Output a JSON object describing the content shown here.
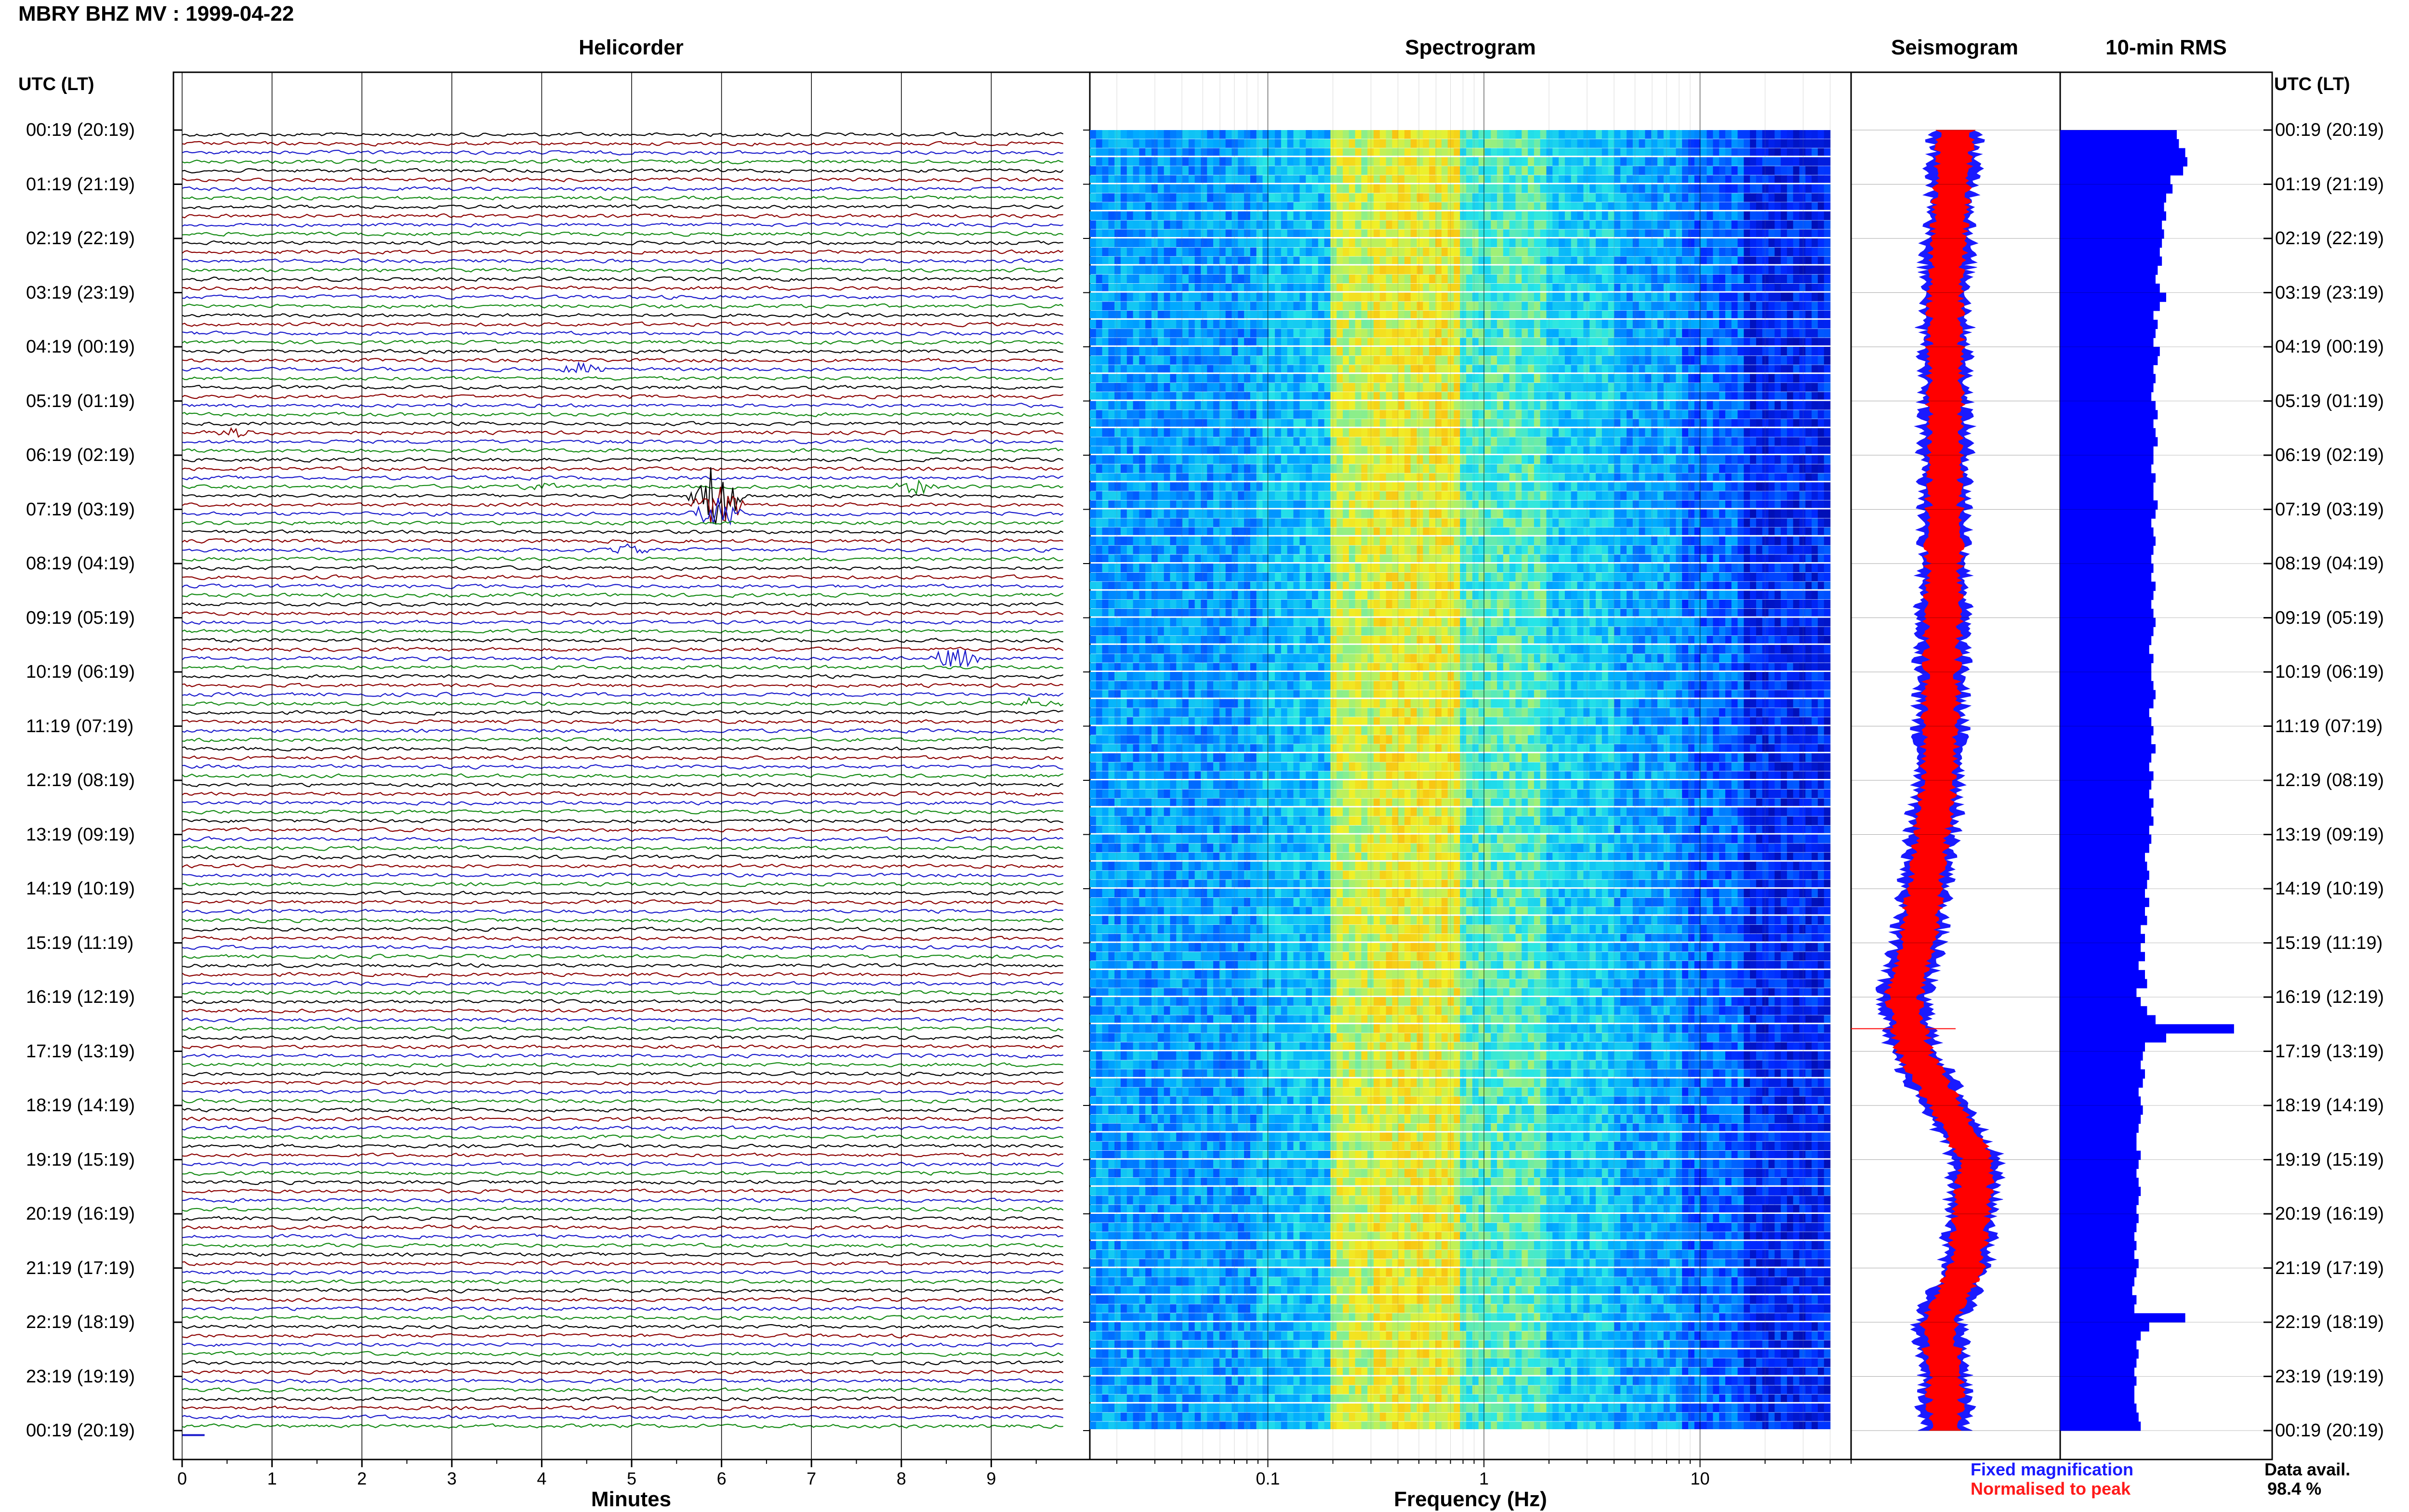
{
  "header": {
    "title": "MBRY BHZ MV : 1999-04-22"
  },
  "panels": {
    "helicorder": "Helicorder",
    "spectrogram": "Spectrogram",
    "seismogram": "Seismogram",
    "rms": "10-min RMS"
  },
  "axis_left_label": "UTC (LT)",
  "axis_right_label": "UTC (LT)",
  "time_labels": [
    "00:19 (20:19)",
    "01:19 (21:19)",
    "02:19 (22:19)",
    "03:19 (23:19)",
    "04:19 (00:19)",
    "05:19 (01:19)",
    "06:19 (02:19)",
    "07:19 (03:19)",
    "08:19 (04:19)",
    "09:19 (05:19)",
    "10:19 (06:19)",
    "11:19 (07:19)",
    "12:19 (08:19)",
    "13:19 (09:19)",
    "14:19 (10:19)",
    "15:19 (11:19)",
    "16:19 (12:19)",
    "17:19 (13:19)",
    "18:19 (14:19)",
    "19:19 (15:19)",
    "20:19 (16:19)",
    "21:19 (17:19)",
    "22:19 (18:19)",
    "23:19 (19:19)",
    "00:19 (20:19)"
  ],
  "x_captions": {
    "helicorder": "Minutes",
    "spectrogram": "Frequency (Hz)"
  },
  "legend": {
    "fixed": "Fixed magnification",
    "normalised": "Normalised to peak"
  },
  "availability": {
    "label": "Data avail.",
    "value": "98.4 %"
  },
  "colors": {
    "trace_black": "#000000",
    "trace_red": "#8b0000",
    "trace_blue": "#1a1acc",
    "trace_green": "#138a13",
    "rms_bar": "#0000ff",
    "seis_fixed": "#1a1aff",
    "seis_norm": "#ff0000"
  },
  "chart_data": [
    {
      "type": "line",
      "name": "helicorder",
      "xlabel": "Minutes",
      "xlim": [
        0,
        10
      ],
      "x_ticks": [
        0,
        1,
        2,
        3,
        4,
        5,
        6,
        7,
        8,
        9
      ],
      "rows_per_hour": 6,
      "hours": 24,
      "trace_color_cycle": [
        "trace_black",
        "trace_red",
        "trace_blue",
        "trace_green"
      ],
      "events": [
        {
          "row": 26,
          "minute": 4.45,
          "amplitude": 0.35
        },
        {
          "row": 33,
          "minute": 0.6,
          "amplitude": 0.25
        },
        {
          "row": 39,
          "minute": 4.0,
          "amplitude": 0.2
        },
        {
          "row": 39,
          "minute": 8.15,
          "amplitude": 0.4
        },
        {
          "row": 40,
          "minute": 5.95,
          "amplitude": 1.8
        },
        {
          "row": 41,
          "minute": 5.95,
          "amplitude": 1.2
        },
        {
          "row": 42,
          "minute": 5.95,
          "amplitude": 0.8
        },
        {
          "row": 46,
          "minute": 5.0,
          "amplitude": 0.3
        },
        {
          "row": 58,
          "minute": 8.6,
          "amplitude": 0.6
        },
        {
          "row": 63,
          "minute": 9.5,
          "amplitude": 0.25
        }
      ]
    },
    {
      "type": "heatmap",
      "name": "spectrogram",
      "xlabel": "Frequency (Hz)",
      "x_scale": "log",
      "xlim": [
        0.015,
        50
      ],
      "x_tick_labels": [
        "0.1",
        "1",
        "10"
      ],
      "x_tick_values": [
        0.1,
        1,
        10
      ],
      "rows": 144,
      "bands_hz": [
        {
          "from": 0.015,
          "to": 0.09,
          "level": 0.38
        },
        {
          "from": 0.09,
          "to": 0.2,
          "level": 0.45
        },
        {
          "from": 0.2,
          "to": 0.3,
          "level": 0.75
        },
        {
          "from": 0.3,
          "to": 0.8,
          "level": 0.8
        },
        {
          "from": 0.8,
          "to": 2.0,
          "level": 0.6
        },
        {
          "from": 2.0,
          "to": 4.0,
          "level": 0.48
        },
        {
          "from": 4.0,
          "to": 8.0,
          "level": 0.4
        },
        {
          "from": 8.0,
          "to": 16.0,
          "level": 0.3
        },
        {
          "from": 16.0,
          "to": 40.0,
          "level": 0.18
        }
      ]
    },
    {
      "type": "line",
      "name": "seismogram",
      "series": [
        {
          "name": "Fixed magnification",
          "color": "seis_fixed",
          "width_rel": 0.45
        },
        {
          "name": "Normalised to peak",
          "color": "seis_norm",
          "width_rel": 0.3
        }
      ],
      "offset_profile_hours": [
        0,
        3,
        6,
        9,
        12,
        15,
        16,
        17,
        18,
        19,
        21,
        22,
        23,
        24
      ],
      "offset_profile_values": [
        0.0,
        -0.05,
        -0.05,
        -0.06,
        -0.08,
        -0.18,
        -0.25,
        -0.2,
        -0.05,
        0.1,
        0.05,
        -0.08,
        -0.05,
        -0.05
      ],
      "spike_row": 99
    },
    {
      "type": "bar",
      "name": "10-min RMS",
      "values": [
        0.55,
        0.56,
        0.59,
        0.6,
        0.58,
        0.52,
        0.53,
        0.5,
        0.49,
        0.5,
        0.48,
        0.49,
        0.48,
        0.47,
        0.48,
        0.46,
        0.45,
        0.47,
        0.5,
        0.47,
        0.44,
        0.46,
        0.45,
        0.44,
        0.47,
        0.46,
        0.44,
        0.45,
        0.44,
        0.43,
        0.45,
        0.46,
        0.44,
        0.45,
        0.46,
        0.44,
        0.44,
        0.43,
        0.45,
        0.44,
        0.44,
        0.46,
        0.45,
        0.43,
        0.44,
        0.45,
        0.44,
        0.43,
        0.44,
        0.43,
        0.45,
        0.44,
        0.43,
        0.44,
        0.45,
        0.44,
        0.43,
        0.42,
        0.44,
        0.43,
        0.43,
        0.44,
        0.45,
        0.44,
        0.42,
        0.43,
        0.44,
        0.43,
        0.45,
        0.43,
        0.42,
        0.44,
        0.43,
        0.42,
        0.44,
        0.43,
        0.44,
        0.42,
        0.43,
        0.42,
        0.4,
        0.41,
        0.42,
        0.41,
        0.4,
        0.42,
        0.4,
        0.41,
        0.38,
        0.4,
        0.38,
        0.4,
        0.37,
        0.4,
        0.41,
        0.36,
        0.38,
        0.41,
        0.45,
        0.82,
        0.5,
        0.4,
        0.39,
        0.38,
        0.4,
        0.39,
        0.37,
        0.38,
        0.39,
        0.38,
        0.37,
        0.36,
        0.36,
        0.38,
        0.37,
        0.36,
        0.37,
        0.38,
        0.37,
        0.36,
        0.37,
        0.36,
        0.35,
        0.36,
        0.35,
        0.37,
        0.36,
        0.35,
        0.34,
        0.36,
        0.35,
        0.59,
        0.42,
        0.38,
        0.36,
        0.37,
        0.36,
        0.35,
        0.36,
        0.35,
        0.35,
        0.36,
        0.37,
        0.38
      ]
    }
  ]
}
